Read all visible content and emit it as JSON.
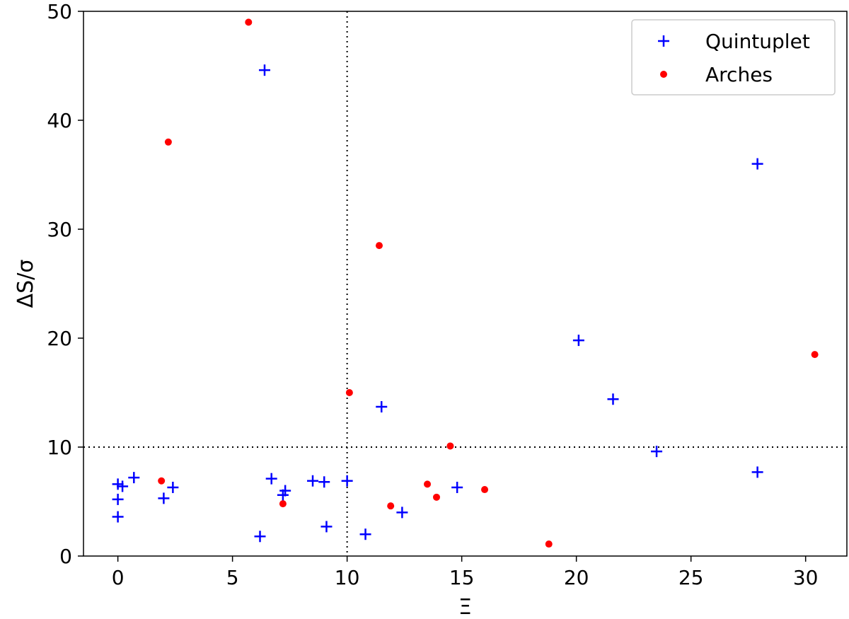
{
  "chart_data": {
    "type": "scatter",
    "title": "",
    "xlabel": "Ξ",
    "ylabel": "ΔS/σ",
    "xlim": [
      -1.5,
      31.8
    ],
    "ylim": [
      0,
      50
    ],
    "xticks": [
      0,
      5,
      10,
      15,
      20,
      25,
      30
    ],
    "yticks": [
      0,
      10,
      20,
      30,
      40,
      50
    ],
    "grid": false,
    "legend_position": "top-right",
    "reference_lines": {
      "vertical_x": 10,
      "horizontal_y": 10,
      "style": "dotted"
    },
    "series": [
      {
        "name": "Quintuplet",
        "marker": "plus",
        "color": "#0000ff",
        "points": [
          [
            6.4,
            44.6
          ],
          [
            27.9,
            36.0
          ],
          [
            20.1,
            19.8
          ],
          [
            21.6,
            14.4
          ],
          [
            11.5,
            13.7
          ],
          [
            23.5,
            9.6
          ],
          [
            27.9,
            7.7
          ],
          [
            0.7,
            7.2
          ],
          [
            6.7,
            7.1
          ],
          [
            8.5,
            6.9
          ],
          [
            9.0,
            6.8
          ],
          [
            10.0,
            6.9
          ],
          [
            0.0,
            6.6
          ],
          [
            0.2,
            6.4
          ],
          [
            2.4,
            6.3
          ],
          [
            14.8,
            6.3
          ],
          [
            7.3,
            6.0
          ],
          [
            7.2,
            5.6
          ],
          [
            0.0,
            5.2
          ],
          [
            2.0,
            5.3
          ],
          [
            12.4,
            4.0
          ],
          [
            0.0,
            3.6
          ],
          [
            9.1,
            2.7
          ],
          [
            10.8,
            2.0
          ],
          [
            6.2,
            1.8
          ]
        ]
      },
      {
        "name": "Arches",
        "marker": "dot",
        "color": "#ff0000",
        "points": [
          [
            5.7,
            49.0
          ],
          [
            2.2,
            38.0
          ],
          [
            11.4,
            28.5
          ],
          [
            30.4,
            18.5
          ],
          [
            10.1,
            15.0
          ],
          [
            14.5,
            10.1
          ],
          [
            1.9,
            6.9
          ],
          [
            13.5,
            6.6
          ],
          [
            16.0,
            6.1
          ],
          [
            13.9,
            5.4
          ],
          [
            7.2,
            4.8
          ],
          [
            11.9,
            4.6
          ],
          [
            18.8,
            1.1
          ]
        ]
      }
    ]
  }
}
